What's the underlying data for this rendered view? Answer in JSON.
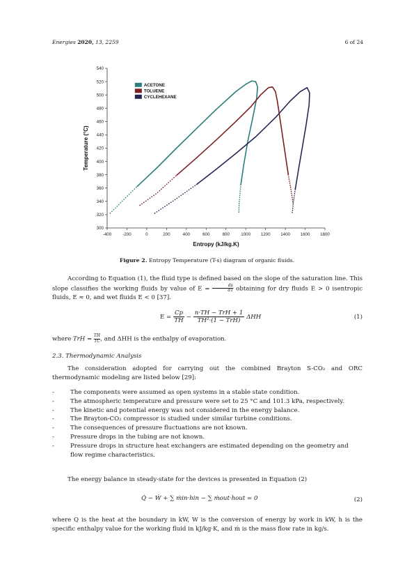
{
  "header": {
    "journal": "Energies",
    "year": "2020,",
    "volume_pages": "13, 2259",
    "page": "6 of 24"
  },
  "chart_data": {
    "type": "line",
    "title": "",
    "xlabel": "Entropy (kJ/kg.K)",
    "ylabel": "Temperature (°C)",
    "xlim": [
      -400,
      1800
    ],
    "ylim": [
      300,
      540
    ],
    "x_ticks": [
      "-400",
      "-200",
      "0",
      "200",
      "400",
      "600",
      "800",
      "1000",
      "1200",
      "1400",
      "1600",
      "1800"
    ],
    "y_ticks": [
      "300",
      "320",
      "340",
      "360",
      "380",
      "400",
      "420",
      "440",
      "460",
      "480",
      "500",
      "520",
      "540"
    ],
    "legend_position": "top-left",
    "grid": false,
    "series": [
      {
        "name": "ACETONE",
        "color": "#2a7d7a",
        "liquid": [
          [
            -370,
            322
          ],
          [
            -250,
            340
          ],
          [
            -100,
            362
          ],
          [
            100,
            390
          ],
          [
            300,
            420
          ],
          [
            500,
            449
          ],
          [
            700,
            478
          ],
          [
            900,
            505
          ],
          [
            1000,
            516
          ],
          [
            1060,
            521
          ],
          [
            1100,
            520
          ]
        ],
        "vapor": [
          [
            1100,
            520
          ],
          [
            1120,
            512
          ],
          [
            1110,
            495
          ],
          [
            1070,
            465
          ],
          [
            1020,
            430
          ],
          [
            980,
            395
          ],
          [
            950,
            365
          ],
          [
            935,
            340
          ],
          [
            930,
            322
          ]
        ]
      },
      {
        "name": "TOLUENE",
        "color": "#7a1f22",
        "liquid": [
          [
            -70,
            334
          ],
          [
            100,
            352
          ],
          [
            300,
            379
          ],
          [
            500,
            405
          ],
          [
            700,
            432
          ],
          [
            900,
            460
          ],
          [
            1050,
            482
          ],
          [
            1150,
            500
          ],
          [
            1230,
            511
          ],
          [
            1270,
            512
          ]
        ],
        "vapor": [
          [
            1270,
            512
          ],
          [
            1300,
            505
          ],
          [
            1320,
            490
          ],
          [
            1340,
            470
          ],
          [
            1370,
            440
          ],
          [
            1400,
            410
          ],
          [
            1430,
            380
          ],
          [
            1460,
            355
          ],
          [
            1480,
            335
          ]
        ]
      },
      {
        "name": "CYCLEHEXANE",
        "color": "#272552",
        "liquid": [
          [
            80,
            322
          ],
          [
            300,
            344
          ],
          [
            500,
            365
          ],
          [
            700,
            388
          ],
          [
            900,
            412
          ],
          [
            1100,
            437
          ],
          [
            1300,
            466
          ],
          [
            1450,
            491
          ],
          [
            1550,
            505
          ],
          [
            1620,
            511
          ]
        ],
        "vapor": [
          [
            1620,
            511
          ],
          [
            1645,
            503
          ],
          [
            1640,
            485
          ],
          [
            1610,
            455
          ],
          [
            1570,
            420
          ],
          [
            1530,
            385
          ],
          [
            1500,
            358
          ],
          [
            1480,
            338
          ],
          [
            1470,
            322
          ]
        ]
      }
    ]
  },
  "figure": {
    "caption_label": "Figure 2.",
    "caption_text": "Entropy Temperature (T-s) diagram of organic fluids."
  },
  "body": {
    "para1_a": "According to Equation (1), the fluid type is defined based on the slope of the saturation line. This slope classifies the working fluids by value of E =",
    "para1_frac_num": "ds",
    "para1_frac_den": "dT",
    "para1_b": "obtaining for dry fluids E > 0 isentropic fluids, E ≈ 0, and wet fluids E < 0 [37].",
    "eq1_lhs": "E =",
    "eq1_f1_num": "Cp",
    "eq1_f1_den": "TH",
    "eq1_minus": "−",
    "eq1_f2_num": "n·TH − TrH + 1",
    "eq1_f2_den": "TH²·(1 − TrH)",
    "eq1_tail": "ΔHH",
    "eq1_number": "(1)",
    "where1_a": "where",
    "where1_var": "TrH =",
    "where1_frac_num": "TH",
    "where1_frac_den": "TC",
    "where1_b": ", and ΔHH is the enthalpy of evaporation.",
    "section_title": "2.3. Thermodynamic Analysis",
    "para2": "The consideration adopted for carrying out the combined Brayton S-CO₂ and ORC thermodynamic modeling are listed below [29]:",
    "bullets": [
      "The components were assumed as open systems in a stable state condition.",
      "The atmospheric temperature and pressure were set to 25 °C and 101.3 kPa, respectively.",
      "The kinetic and potential energy was not considered in the energy balance.",
      "The Brayton-CO₂ compressor is studied under similar turbine conditions.",
      "The consequences of pressure fluctuations are not known.",
      "Pressure drops in the tubing are not known.",
      "Pressure drops in structure heat exchangers are estimated depending on the geometry and flow regime characteristics."
    ],
    "para3": "The energy balance in steady-state for the devices is presented in Equation (2)",
    "eq2": "Q̇ − Ẇ + ∑ ṁin·hin − ∑ ṁout·hout = 0",
    "eq2_number": "(2)",
    "para4": "where Q is the heat at the boundary in kW, W is the conversion of energy by work in kW, h is the specific enthalpy value for the working fluid in kJ/kg·K, and ṁ is the mass flow rate in kg/s."
  }
}
